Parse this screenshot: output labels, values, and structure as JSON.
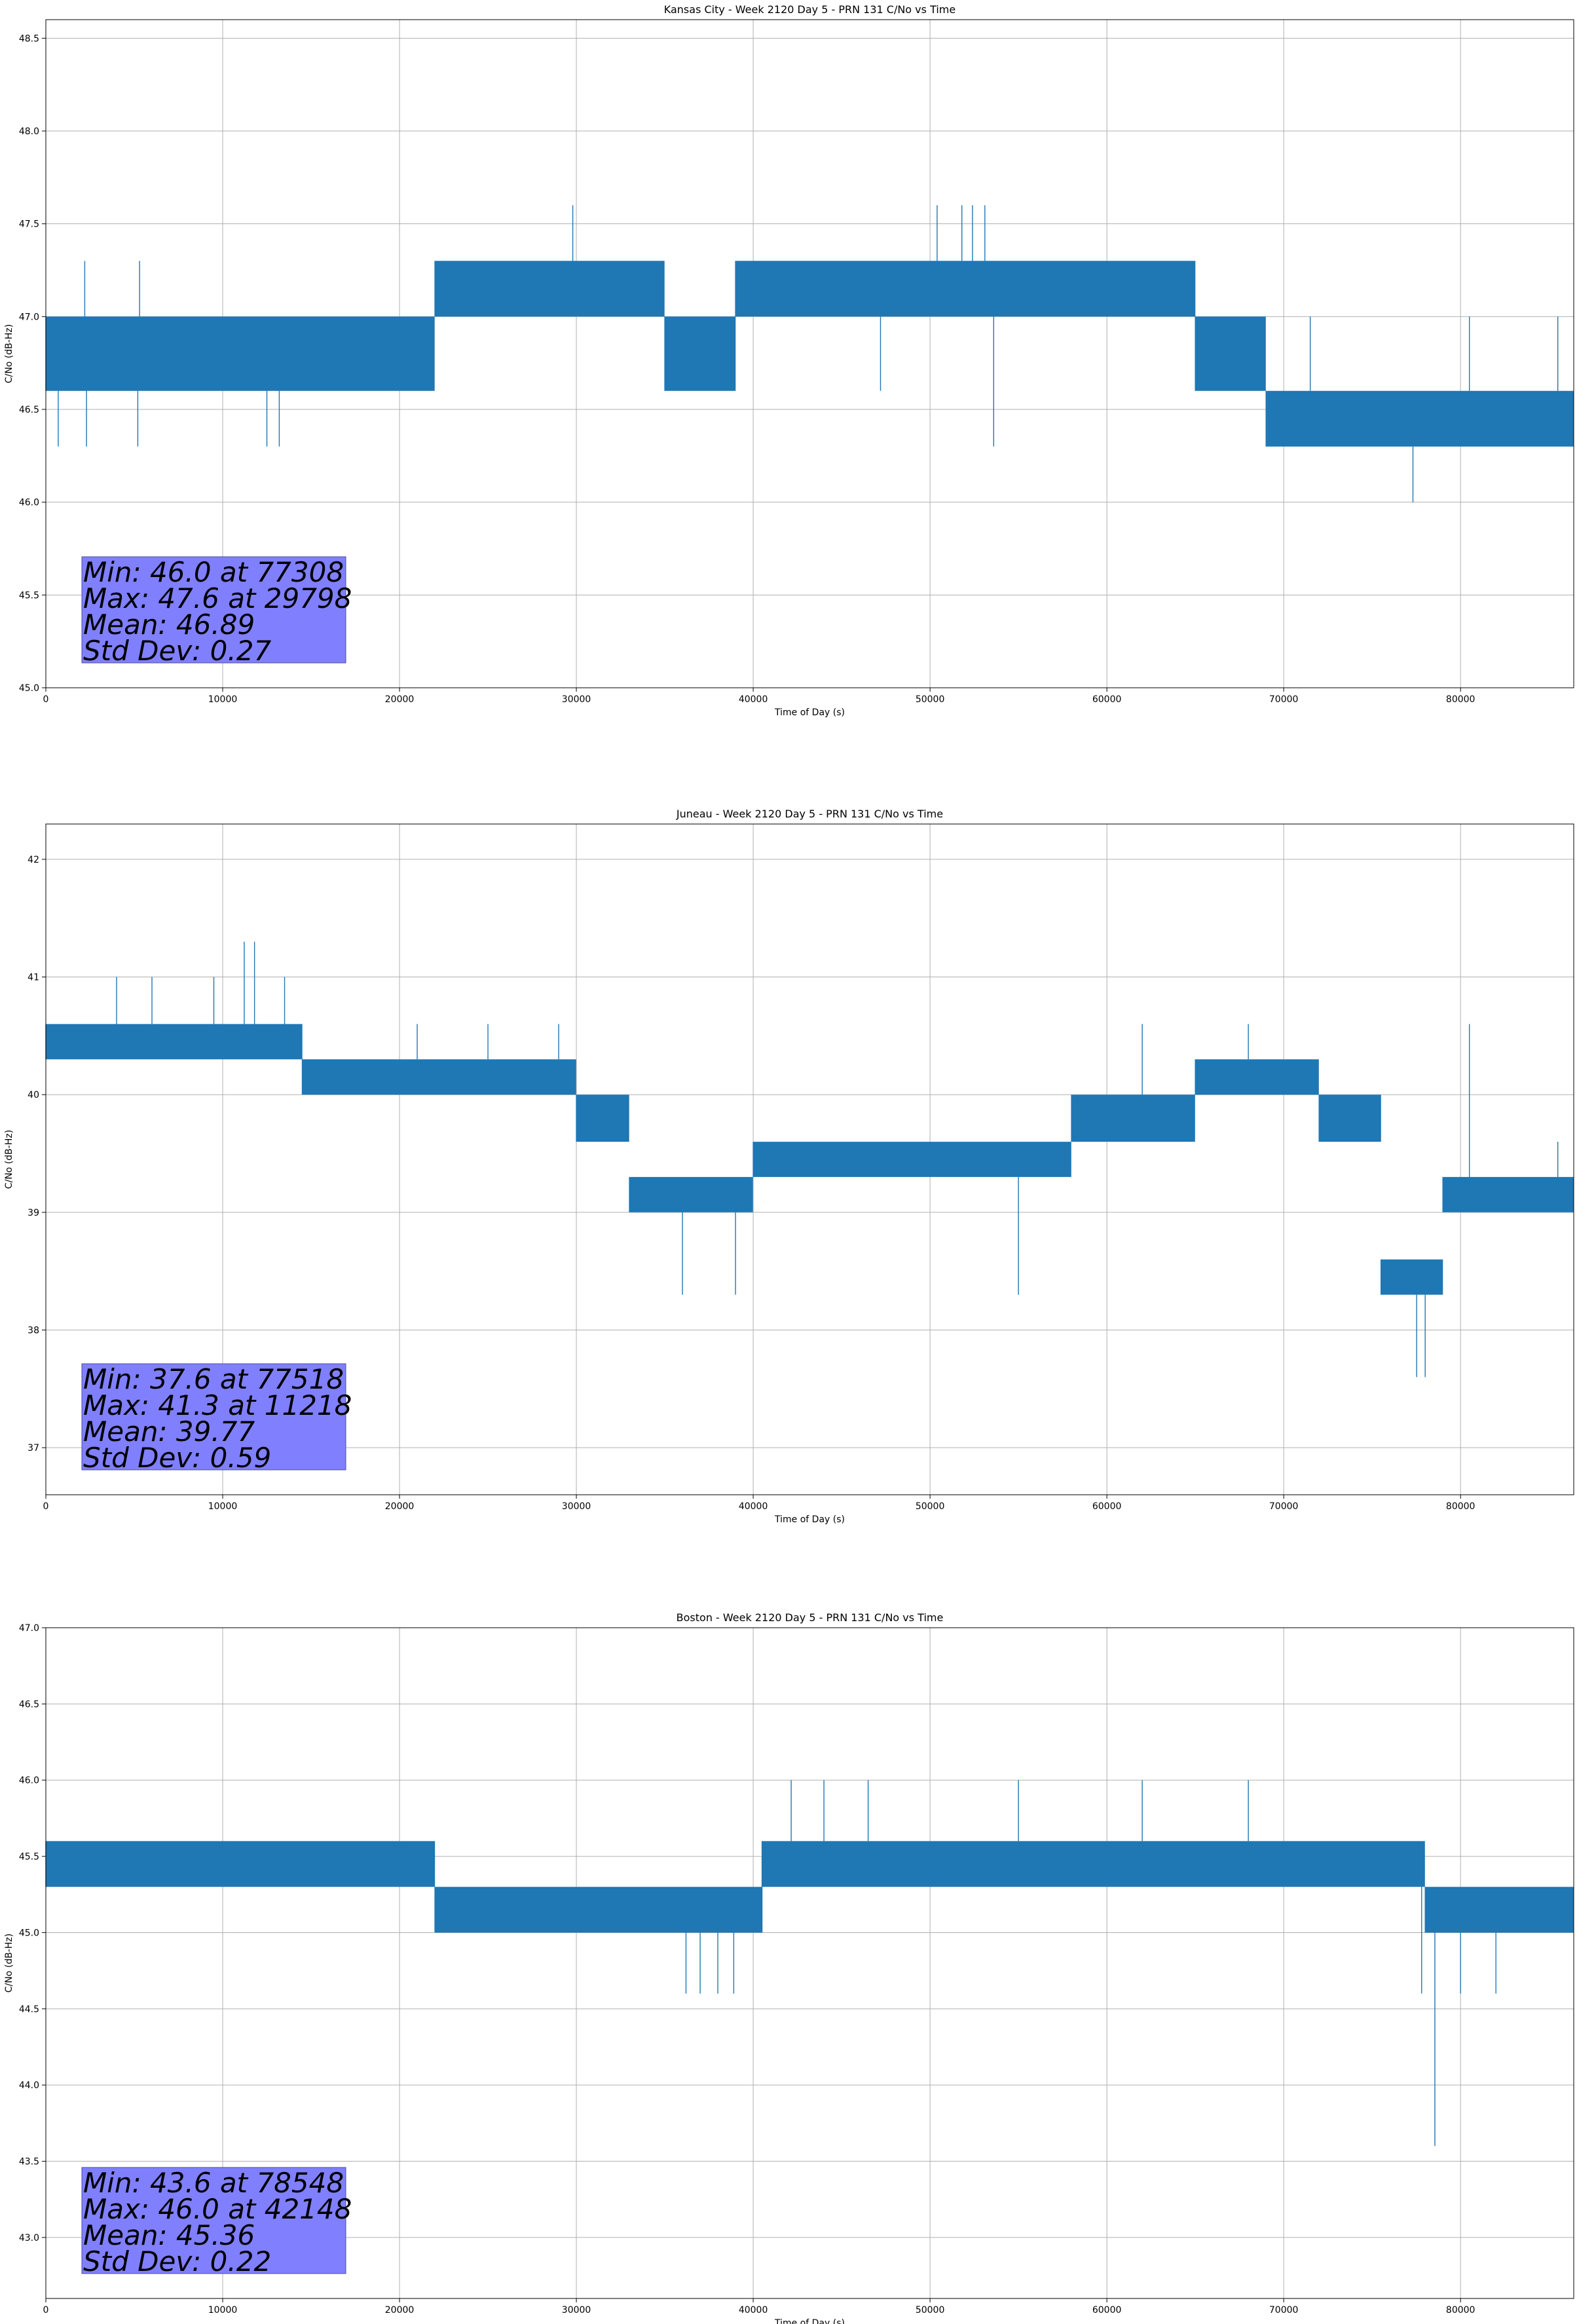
{
  "chart_data": [
    {
      "type": "line",
      "title": "Kansas City - Week 2120 Day 5 - PRN 131 C/No vs Time",
      "xlabel": "Time of Day (s)",
      "ylabel": "C/No (dB-Hz)",
      "xlim": [
        0,
        86400
      ],
      "ylim": [
        45.0,
        48.6
      ],
      "xticks": [
        0,
        10000,
        20000,
        30000,
        40000,
        50000,
        60000,
        70000,
        80000
      ],
      "xtick_labels": [
        "0",
        "10000",
        "20000",
        "30000",
        "40000",
        "50000",
        "60000",
        "70000",
        "80000"
      ],
      "yticks": [
        45.0,
        45.5,
        46.0,
        46.5,
        47.0,
        47.5,
        48.0,
        48.5
      ],
      "ytick_labels": [
        "45.0",
        "45.5",
        "46.0",
        "46.5",
        "47.0",
        "47.5",
        "48.0",
        "48.5"
      ],
      "grid": true,
      "color": "#1f77b4",
      "segments": [
        {
          "start": 0,
          "end": 15000,
          "low": 46.6,
          "high": 47.0
        },
        {
          "start": 15000,
          "end": 22000,
          "low": 46.6,
          "high": 47.0
        },
        {
          "start": 22000,
          "end": 35000,
          "low": 47.0,
          "high": 47.3
        },
        {
          "start": 35000,
          "end": 39000,
          "low": 46.6,
          "high": 47.0
        },
        {
          "start": 39000,
          "end": 49500,
          "low": 47.0,
          "high": 47.3
        },
        {
          "start": 49500,
          "end": 65000,
          "low": 47.0,
          "high": 47.3
        },
        {
          "start": 65000,
          "end": 69000,
          "low": 46.6,
          "high": 47.0
        },
        {
          "start": 69000,
          "end": 86400,
          "low": 46.3,
          "high": 46.6
        }
      ],
      "spikes": [
        {
          "x": 700,
          "y": 46.3
        },
        {
          "x": 2200,
          "y": 47.3
        },
        {
          "x": 2300,
          "y": 46.3
        },
        {
          "x": 5200,
          "y": 46.3
        },
        {
          "x": 5300,
          "y": 47.3
        },
        {
          "x": 12500,
          "y": 46.3
        },
        {
          "x": 13200,
          "y": 46.3
        },
        {
          "x": 29798,
          "y": 47.6
        },
        {
          "x": 47200,
          "y": 46.6
        },
        {
          "x": 50400,
          "y": 47.6
        },
        {
          "x": 51800,
          "y": 47.6
        },
        {
          "x": 52400,
          "y": 47.6
        },
        {
          "x": 53100,
          "y": 47.6
        },
        {
          "x": 53600,
          "y": 46.3
        },
        {
          "x": 77308,
          "y": 46.0
        },
        {
          "x": 71500,
          "y": 47.0
        },
        {
          "x": 80500,
          "y": 47.0
        },
        {
          "x": 85500,
          "y": 47.0
        }
      ],
      "stats": {
        "min_label": "Min: 46.0 at 77308",
        "max_label": "Max: 47.6 at 29798",
        "mean_label": "Mean: 46.89",
        "std_label": "Std Dev: 0.27"
      }
    },
    {
      "type": "line",
      "title": "Juneau - Week 2120 Day 5 - PRN 131 C/No vs Time",
      "xlabel": "Time of Day (s)",
      "ylabel": "C/No (dB-Hz)",
      "xlim": [
        0,
        86400
      ],
      "ylim": [
        36.6,
        42.3
      ],
      "xticks": [
        0,
        10000,
        20000,
        30000,
        40000,
        50000,
        60000,
        70000,
        80000
      ],
      "xtick_labels": [
        "0",
        "10000",
        "20000",
        "30000",
        "40000",
        "50000",
        "60000",
        "70000",
        "80000"
      ],
      "yticks": [
        37,
        38,
        39,
        40,
        41,
        42
      ],
      "ytick_labels": [
        "37",
        "38",
        "39",
        "40",
        "41",
        "42"
      ],
      "grid": true,
      "color": "#1f77b4",
      "segments": [
        {
          "start": 0,
          "end": 5000,
          "low": 40.3,
          "high": 40.6
        },
        {
          "start": 5000,
          "end": 14500,
          "low": 40.3,
          "high": 40.6
        },
        {
          "start": 14500,
          "end": 22000,
          "low": 40.0,
          "high": 40.3
        },
        {
          "start": 22000,
          "end": 30000,
          "low": 40.0,
          "high": 40.3
        },
        {
          "start": 30000,
          "end": 33000,
          "low": 39.6,
          "high": 40.0
        },
        {
          "start": 33000,
          "end": 40000,
          "low": 39.0,
          "high": 39.3
        },
        {
          "start": 40000,
          "end": 50000,
          "low": 39.3,
          "high": 39.6
        },
        {
          "start": 50000,
          "end": 58000,
          "low": 39.3,
          "high": 39.6
        },
        {
          "start": 58000,
          "end": 65000,
          "low": 39.6,
          "high": 40.0
        },
        {
          "start": 65000,
          "end": 72000,
          "low": 40.0,
          "high": 40.3
        },
        {
          "start": 72000,
          "end": 75500,
          "low": 39.6,
          "high": 40.0
        },
        {
          "start": 75500,
          "end": 79000,
          "low": 38.3,
          "high": 38.6
        },
        {
          "start": 79000,
          "end": 86400,
          "low": 39.0,
          "high": 39.3
        }
      ],
      "spikes": [
        {
          "x": 4000,
          "y": 41.0
        },
        {
          "x": 6000,
          "y": 41.0
        },
        {
          "x": 9500,
          "y": 41.0
        },
        {
          "x": 11218,
          "y": 41.3
        },
        {
          "x": 11800,
          "y": 41.3
        },
        {
          "x": 13500,
          "y": 41.0
        },
        {
          "x": 21000,
          "y": 40.6
        },
        {
          "x": 25000,
          "y": 40.6
        },
        {
          "x": 29000,
          "y": 40.6
        },
        {
          "x": 36000,
          "y": 38.3
        },
        {
          "x": 39000,
          "y": 38.3
        },
        {
          "x": 55000,
          "y": 38.3
        },
        {
          "x": 62000,
          "y": 40.6
        },
        {
          "x": 68000,
          "y": 40.6
        },
        {
          "x": 77518,
          "y": 37.6
        },
        {
          "x": 78000,
          "y": 37.6
        },
        {
          "x": 80500,
          "y": 40.6
        },
        {
          "x": 85500,
          "y": 39.6
        }
      ],
      "stats": {
        "min_label": "Min: 37.6 at 77518",
        "max_label": "Max: 41.3 at 11218",
        "mean_label": "Mean: 39.77",
        "std_label": "Std Dev: 0.59"
      }
    },
    {
      "type": "line",
      "title": "Boston - Week 2120 Day 5 - PRN 131 C/No vs Time",
      "xlabel": "Time of Day (s)",
      "ylabel": "C/No (dB-Hz)",
      "xlim": [
        0,
        86400
      ],
      "ylim": [
        42.6,
        47.0
      ],
      "xticks": [
        0,
        10000,
        20000,
        30000,
        40000,
        50000,
        60000,
        70000,
        80000
      ],
      "xtick_labels": [
        "0",
        "10000",
        "20000",
        "30000",
        "40000",
        "50000",
        "60000",
        "70000",
        "80000"
      ],
      "yticks": [
        43.0,
        43.5,
        44.0,
        44.5,
        45.0,
        45.5,
        46.0,
        46.5,
        47.0
      ],
      "ytick_labels": [
        "43.0",
        "43.5",
        "44.0",
        "44.5",
        "45.0",
        "45.5",
        "46.0",
        "46.5",
        "47.0"
      ],
      "grid": true,
      "color": "#1f77b4",
      "segments": [
        {
          "start": 0,
          "end": 8000,
          "low": 45.3,
          "high": 45.6
        },
        {
          "start": 8000,
          "end": 15000,
          "low": 45.3,
          "high": 45.6
        },
        {
          "start": 15000,
          "end": 22000,
          "low": 45.3,
          "high": 45.6
        },
        {
          "start": 22000,
          "end": 40500,
          "low": 45.0,
          "high": 45.3
        },
        {
          "start": 40500,
          "end": 42000,
          "low": 45.3,
          "high": 45.6
        },
        {
          "start": 42000,
          "end": 47000,
          "low": 45.3,
          "high": 45.6
        },
        {
          "start": 47000,
          "end": 63000,
          "low": 45.3,
          "high": 45.6
        },
        {
          "start": 63000,
          "end": 78000,
          "low": 45.3,
          "high": 45.6
        },
        {
          "start": 78000,
          "end": 86400,
          "low": 45.0,
          "high": 45.3
        }
      ],
      "spikes": [
        {
          "x": 36200,
          "y": 44.6
        },
        {
          "x": 37000,
          "y": 44.6
        },
        {
          "x": 38000,
          "y": 44.6
        },
        {
          "x": 38900,
          "y": 44.6
        },
        {
          "x": 42148,
          "y": 46.0
        },
        {
          "x": 44000,
          "y": 46.0
        },
        {
          "x": 46500,
          "y": 46.0
        },
        {
          "x": 55000,
          "y": 46.0
        },
        {
          "x": 62000,
          "y": 46.0
        },
        {
          "x": 68000,
          "y": 46.0
        },
        {
          "x": 77800,
          "y": 44.6
        },
        {
          "x": 78548,
          "y": 43.6
        },
        {
          "x": 80000,
          "y": 44.6
        },
        {
          "x": 82000,
          "y": 44.6
        }
      ],
      "stats": {
        "min_label": "Min: 43.6 at 78548",
        "max_label": "Max: 46.0 at 42148",
        "mean_label": "Mean: 45.36",
        "std_label": "Std Dev: 0.22"
      }
    }
  ]
}
